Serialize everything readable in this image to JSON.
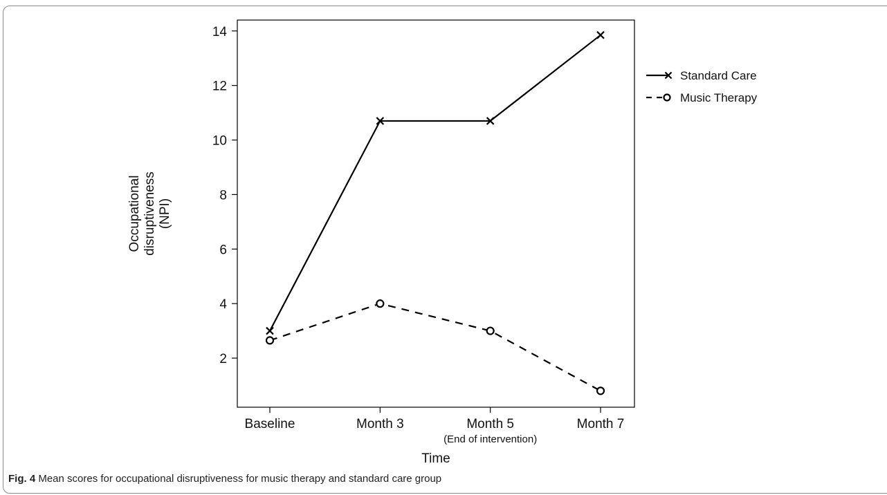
{
  "chart_data": {
    "type": "line",
    "categories": [
      "Baseline",
      "Month 3",
      "Month 5",
      "Month 7"
    ],
    "category_sublabels": [
      "",
      "",
      "(End of intervention)",
      ""
    ],
    "series": [
      {
        "name": "Standard Care",
        "values": [
          3.0,
          10.7,
          10.7,
          13.85
        ],
        "line_style": "solid",
        "marker": "x",
        "color": "#000000"
      },
      {
        "name": "Music Therapy",
        "values": [
          2.65,
          4.0,
          3.0,
          0.8
        ],
        "line_style": "dashed",
        "marker": "circle",
        "color": "#000000"
      }
    ],
    "xlabel": "Time",
    "ylabel": "Occupational disruptiveness (NPI)",
    "ylabel_lines": [
      "Occupational",
      "disruptiveness",
      "(NPI)"
    ],
    "ylim": [
      0.2,
      14.4
    ],
    "yticks": [
      2,
      4,
      6,
      8,
      10,
      12,
      14
    ],
    "grid": false,
    "legend_position": "right"
  },
  "caption": {
    "label": "Fig. 4",
    "text": "Mean scores for occupational disruptiveness for music therapy and standard care group"
  }
}
